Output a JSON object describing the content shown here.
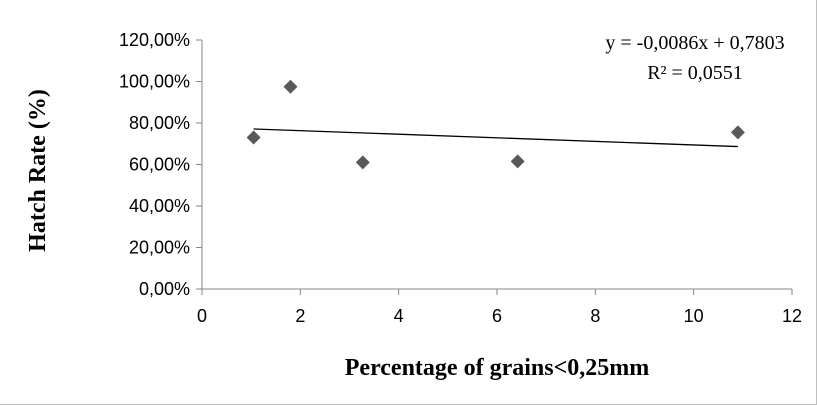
{
  "chart_data": {
    "type": "scatter",
    "title": "",
    "xlabel": "Percentage of grains<0,25mm",
    "ylabel": "Hatch Rate (%)",
    "xlim": [
      0,
      12
    ],
    "ylim": [
      0,
      1.2
    ],
    "x_ticks": [
      "0",
      "2",
      "4",
      "6",
      "8",
      "10",
      "12"
    ],
    "y_ticks": [
      "0,00%",
      "20,00%",
      "40,00%",
      "60,00%",
      "80,00%",
      "100,00%",
      "120,00%"
    ],
    "grid": false,
    "points": [
      {
        "x": 1.05,
        "y": 0.73
      },
      {
        "x": 1.8,
        "y": 0.975
      },
      {
        "x": 3.27,
        "y": 0.61
      },
      {
        "x": 6.42,
        "y": 0.615
      },
      {
        "x": 10.9,
        "y": 0.755
      }
    ],
    "trendline": {
      "slope": -0.0086,
      "intercept": 0.7803,
      "x_range": [
        1.05,
        10.9
      ],
      "equation": "y = -0,0086x + 0,7803",
      "r_squared": "R² = 0,0551"
    },
    "marker_color": "#595959",
    "line_color": "#000000"
  }
}
